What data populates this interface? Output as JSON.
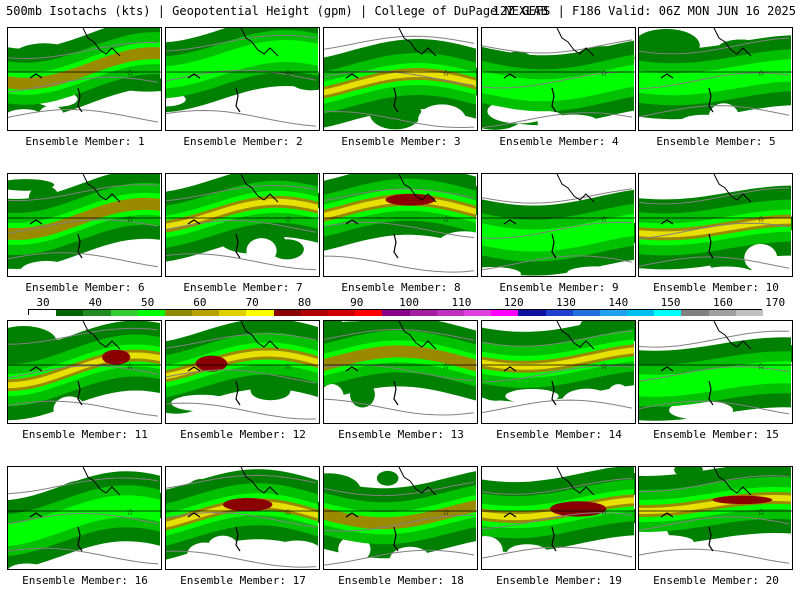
{
  "header": {
    "left": "500mb Isotachs (kts) | Geopotential Height (gpm) | College of DuPage NEXLAB",
    "right": "12Z GEFS | F186 Valid: 06Z MON JUN 16 2025"
  },
  "colorbar": {
    "ticks": [
      "30",
      "40",
      "50",
      "60",
      "70",
      "80",
      "90",
      "100",
      "110",
      "120",
      "130",
      "140",
      "150",
      "160",
      "170"
    ],
    "colors": [
      "#ffffff",
      "#006400",
      "#228b22",
      "#32cd32",
      "#00ff00",
      "#8b8b00",
      "#b8a000",
      "#e0d000",
      "#ffff00",
      "#8b0000",
      "#b00000",
      "#d00000",
      "#ff0000",
      "#8b008b",
      "#a020a0",
      "#c030c0",
      "#e040e0",
      "#ff00ff",
      "#1010a0",
      "#2040d0",
      "#2070e0",
      "#20a0f0",
      "#00c0f0",
      "#00ffff",
      "#808080",
      "#a0a0a0",
      "#c0c0c0"
    ]
  },
  "legend_colors": {
    "green_dark": "#008000",
    "green_mid": "#00c000",
    "green_light": "#00ff00",
    "olive": "#9a8a00",
    "yellow": "#e8e000",
    "dark_red": "#8b0000",
    "contour": "#808080",
    "coast": "#000000"
  },
  "panels": [
    {
      "label": "Ensemble Member: 1",
      "max_level": "olive"
    },
    {
      "label": "Ensemble Member: 2",
      "max_level": "green"
    },
    {
      "label": "Ensemble Member: 3",
      "max_level": "yellow"
    },
    {
      "label": "Ensemble Member: 4",
      "max_level": "green"
    },
    {
      "label": "Ensemble Member: 5",
      "max_level": "green"
    },
    {
      "label": "Ensemble Member: 6",
      "max_level": "olive"
    },
    {
      "label": "Ensemble Member: 7",
      "max_level": "yellow"
    },
    {
      "label": "Ensemble Member: 8",
      "max_level": "dark-red"
    },
    {
      "label": "Ensemble Member: 9",
      "max_level": "green"
    },
    {
      "label": "Ensemble Member: 10",
      "max_level": "yellow"
    },
    {
      "label": "Ensemble Member: 11",
      "max_level": "dark-red"
    },
    {
      "label": "Ensemble Member: 12",
      "max_level": "dark-red"
    },
    {
      "label": "Ensemble Member: 13",
      "max_level": "olive"
    },
    {
      "label": "Ensemble Member: 14",
      "max_level": "yellow"
    },
    {
      "label": "Ensemble Member: 15",
      "max_level": "green"
    },
    {
      "label": "Ensemble Member: 16",
      "max_level": "green"
    },
    {
      "label": "Ensemble Member: 17",
      "max_level": "dark-red"
    },
    {
      "label": "Ensemble Member: 18",
      "max_level": "olive"
    },
    {
      "label": "Ensemble Member: 19",
      "max_level": "dark-red"
    },
    {
      "label": "Ensemble Member: 20",
      "max_level": "dark-red"
    }
  ]
}
